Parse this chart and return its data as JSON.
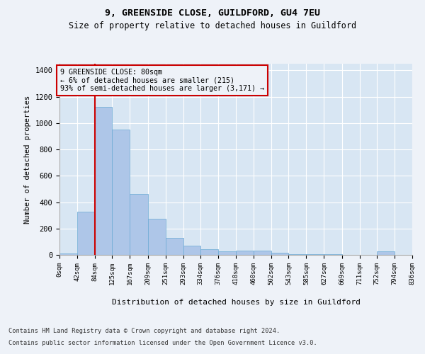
{
  "title1": "9, GREENSIDE CLOSE, GUILDFORD, GU4 7EU",
  "title2": "Size of property relative to detached houses in Guildford",
  "xlabel": "Distribution of detached houses by size in Guildford",
  "ylabel": "Number of detached properties",
  "bin_edges": [
    0,
    42,
    84,
    125,
    167,
    209,
    251,
    293,
    334,
    376,
    418,
    460,
    502,
    543,
    585,
    627,
    669,
    711,
    752,
    794,
    836
  ],
  "bin_labels": [
    "0sqm",
    "42sqm",
    "84sqm",
    "125sqm",
    "167sqm",
    "209sqm",
    "251sqm",
    "293sqm",
    "334sqm",
    "376sqm",
    "418sqm",
    "460sqm",
    "502sqm",
    "543sqm",
    "585sqm",
    "627sqm",
    "669sqm",
    "711sqm",
    "752sqm",
    "794sqm",
    "836sqm"
  ],
  "bar_heights": [
    10,
    325,
    1125,
    950,
    460,
    275,
    130,
    70,
    45,
    25,
    30,
    30,
    15,
    5,
    5,
    5,
    0,
    0,
    25,
    0,
    0
  ],
  "bar_color": "#aec6e8",
  "bar_edgecolor": "#6aaad4",
  "property_line_x": 84,
  "property_line_color": "#cc0000",
  "annotation_line1": "9 GREENSIDE CLOSE: 80sqm",
  "annotation_line2": "← 6% of detached houses are smaller (215)",
  "annotation_line3": "93% of semi-detached houses are larger (3,171) →",
  "annotation_box_color": "#cc0000",
  "ylim": [
    0,
    1450
  ],
  "yticks": [
    0,
    200,
    400,
    600,
    800,
    1000,
    1200,
    1400
  ],
  "background_color": "#eef2f8",
  "plot_bg_color": "#d8e6f3",
  "grid_color": "#ffffff",
  "footer1": "Contains HM Land Registry data © Crown copyright and database right 2024.",
  "footer2": "Contains public sector information licensed under the Open Government Licence v3.0."
}
